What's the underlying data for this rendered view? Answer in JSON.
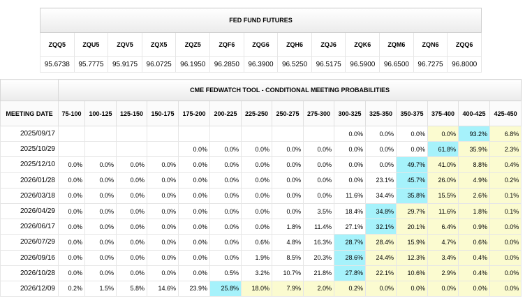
{
  "futures": {
    "title": "FED FUND FUTURES",
    "contracts": [
      {
        "code": "ZQQ5",
        "price": "95.6738"
      },
      {
        "code": "ZQU5",
        "price": "95.7775"
      },
      {
        "code": "ZQV5",
        "price": "95.9175"
      },
      {
        "code": "ZQX5",
        "price": "96.0725"
      },
      {
        "code": "ZQZ5",
        "price": "96.1950"
      },
      {
        "code": "ZQF6",
        "price": "96.2850"
      },
      {
        "code": "ZQG6",
        "price": "96.3900"
      },
      {
        "code": "ZQH6",
        "price": "96.5250"
      },
      {
        "code": "ZQJ6",
        "price": "96.5175"
      },
      {
        "code": "ZQK6",
        "price": "96.5900"
      },
      {
        "code": "ZQM6",
        "price": "96.6500"
      },
      {
        "code": "ZQN6",
        "price": "96.7275"
      },
      {
        "code": "ZQQ6",
        "price": "96.8000"
      }
    ]
  },
  "fedwatch": {
    "title": "CME FEDWATCH TOOL - CONDITIONAL MEETING PROBABILITIES",
    "date_header": "MEETING DATE",
    "ranges": [
      "75-100",
      "100-125",
      "125-150",
      "150-175",
      "175-200",
      "200-225",
      "225-250",
      "250-275",
      "275-300",
      "300-325",
      "325-350",
      "350-375",
      "375-400",
      "400-425",
      "425-450"
    ],
    "rows": [
      {
        "date": "2025/09/17",
        "values": [
          "",
          "",
          "",
          "",
          "",
          "",
          "",
          "",
          "",
          "0.0%",
          "0.0%",
          "0.0%",
          "0.0%",
          "93.2%",
          "6.8%"
        ]
      },
      {
        "date": "2025/10/29",
        "values": [
          "",
          "",
          "",
          "",
          "0.0%",
          "0.0%",
          "0.0%",
          "0.0%",
          "0.0%",
          "0.0%",
          "0.0%",
          "0.0%",
          "61.8%",
          "35.9%",
          "2.3%"
        ]
      },
      {
        "date": "2025/12/10",
        "values": [
          "0.0%",
          "0.0%",
          "0.0%",
          "0.0%",
          "0.0%",
          "0.0%",
          "0.0%",
          "0.0%",
          "0.0%",
          "0.0%",
          "0.0%",
          "49.7%",
          "41.0%",
          "8.8%",
          "0.4%"
        ]
      },
      {
        "date": "2026/01/28",
        "values": [
          "0.0%",
          "0.0%",
          "0.0%",
          "0.0%",
          "0.0%",
          "0.0%",
          "0.0%",
          "0.0%",
          "0.0%",
          "0.0%",
          "23.1%",
          "45.7%",
          "26.0%",
          "4.9%",
          "0.2%"
        ]
      },
      {
        "date": "2026/03/18",
        "values": [
          "0.0%",
          "0.0%",
          "0.0%",
          "0.0%",
          "0.0%",
          "0.0%",
          "0.0%",
          "0.0%",
          "0.0%",
          "11.6%",
          "34.4%",
          "35.8%",
          "15.5%",
          "2.6%",
          "0.1%"
        ]
      },
      {
        "date": "2026/04/29",
        "values": [
          "0.0%",
          "0.0%",
          "0.0%",
          "0.0%",
          "0.0%",
          "0.0%",
          "0.0%",
          "0.0%",
          "3.5%",
          "18.4%",
          "34.8%",
          "29.7%",
          "11.6%",
          "1.8%",
          "0.1%"
        ]
      },
      {
        "date": "2026/06/17",
        "values": [
          "0.0%",
          "0.0%",
          "0.0%",
          "0.0%",
          "0.0%",
          "0.0%",
          "0.0%",
          "1.8%",
          "11.4%",
          "27.1%",
          "32.1%",
          "20.1%",
          "6.4%",
          "0.9%",
          "0.0%"
        ]
      },
      {
        "date": "2026/07/29",
        "values": [
          "0.0%",
          "0.0%",
          "0.0%",
          "0.0%",
          "0.0%",
          "0.0%",
          "0.6%",
          "4.8%",
          "16.3%",
          "28.7%",
          "28.4%",
          "15.9%",
          "4.7%",
          "0.6%",
          "0.0%"
        ]
      },
      {
        "date": "2026/09/16",
        "values": [
          "0.0%",
          "0.0%",
          "0.0%",
          "0.0%",
          "0.0%",
          "0.0%",
          "1.9%",
          "8.5%",
          "20.3%",
          "28.6%",
          "24.4%",
          "12.3%",
          "3.4%",
          "0.4%",
          "0.0%"
        ]
      },
      {
        "date": "2026/10/28",
        "values": [
          "0.0%",
          "0.0%",
          "0.0%",
          "0.0%",
          "0.0%",
          "0.5%",
          "3.2%",
          "10.7%",
          "21.8%",
          "27.8%",
          "22.1%",
          "10.6%",
          "2.9%",
          "0.4%",
          "0.0%"
        ]
      },
      {
        "date": "2026/12/09",
        "values": [
          "0.2%",
          "1.5%",
          "5.8%",
          "14.6%",
          "23.9%",
          "25.8%",
          "18.0%",
          "7.9%",
          "2.0%",
          "0.2%",
          "0.0%",
          "0.0%",
          "0.0%",
          "0.0%",
          "0.0%"
        ]
      }
    ],
    "colors": {
      "current_rate_fill": "#fbfbd0",
      "max_probability_fill": "#a6f2fb"
    }
  }
}
